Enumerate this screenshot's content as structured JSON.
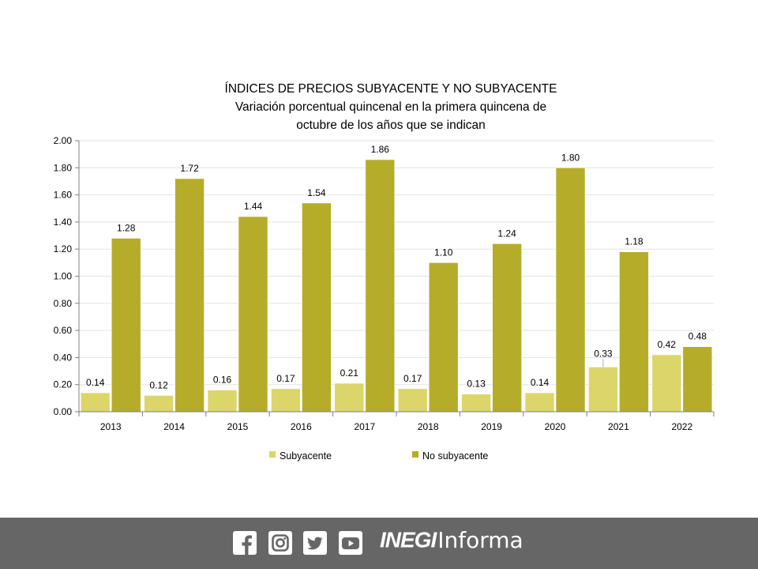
{
  "chart_data": {
    "type": "bar",
    "title": "ÍNDICES DE PRECIOS SUBYACENTE Y NO SUBYACENTE",
    "subtitle_line1": "Variación porcentual quincenal en la primera quincena de",
    "subtitle_line2": "octubre de los años que se indican",
    "categories": [
      "2013",
      "2014",
      "2015",
      "2016",
      "2017",
      "2018",
      "2019",
      "2020",
      "2021",
      "2022"
    ],
    "series": [
      {
        "name": "Subyacente",
        "color": "#dcd66a",
        "values": [
          0.14,
          0.12,
          0.16,
          0.17,
          0.21,
          0.17,
          0.13,
          0.14,
          0.33,
          0.42
        ],
        "labels": [
          "0.14",
          "0.12",
          "0.16",
          "0.17",
          "0.21",
          "0.17",
          "0.13",
          "0.14",
          "0.33",
          "0.42"
        ]
      },
      {
        "name": "No subyacente",
        "color": "#b5ad2a",
        "values": [
          1.28,
          1.72,
          1.44,
          1.54,
          1.86,
          1.1,
          1.24,
          1.8,
          1.18,
          0.48
        ],
        "labels": [
          "1.28",
          "1.72",
          "1.44",
          "1.54",
          "1.86",
          "1.10",
          "1.24",
          "1.80",
          "1.18",
          "0.48"
        ]
      }
    ],
    "ylim": [
      0,
      2.0
    ],
    "yticks": [
      "0.00",
      "0.20",
      "0.40",
      "0.60",
      "0.80",
      "1.00",
      "1.20",
      "1.40",
      "1.60",
      "1.80",
      "2.00"
    ],
    "grid": true,
    "legend": "bottom"
  },
  "footer": {
    "icons": [
      "facebook-icon",
      "instagram-icon",
      "twitter-icon",
      "youtube-icon"
    ],
    "brand_strong": "INEGI",
    "brand_light": "Informa"
  }
}
